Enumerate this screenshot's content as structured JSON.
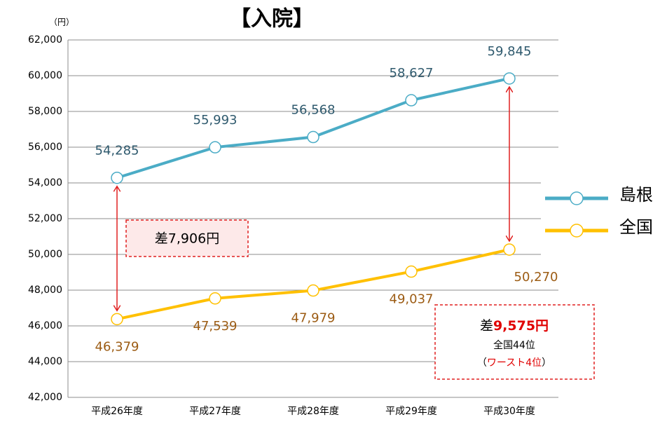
{
  "chart_data": {
    "type": "line",
    "title": "【入院】",
    "y_unit": "（円）",
    "categories": [
      "平成26年度",
      "平成27年度",
      "平成28年度",
      "平成29年度",
      "平成30年度"
    ],
    "series": [
      {
        "name": "島根",
        "color": "#4bacc6",
        "label_color": "#2f5a6e",
        "values": [
          54285,
          55993,
          56568,
          58627,
          59845
        ],
        "value_labels": [
          "54,285",
          "55,993",
          "56,568",
          "58,627",
          "59,845"
        ]
      },
      {
        "name": "全国",
        "color": "#ffc000",
        "label_color": "#9c5c14",
        "values": [
          46379,
          47539,
          47979,
          49037,
          50270
        ],
        "value_labels": [
          "46,379",
          "47,539",
          "47,979",
          "49,037",
          "50,270"
        ]
      }
    ],
    "ylim": [
      42000,
      62000
    ],
    "yticks": [
      {
        "value": 42000,
        "label": "42,000"
      },
      {
        "value": 44000,
        "label": "44,000"
      },
      {
        "value": 46000,
        "label": "46,000"
      },
      {
        "value": 48000,
        "label": "48,000"
      },
      {
        "value": 50000,
        "label": "50,000"
      },
      {
        "value": 52000,
        "label": "52,000"
      },
      {
        "value": 54000,
        "label": "54,000"
      },
      {
        "value": 56000,
        "label": "56,000"
      },
      {
        "value": 58000,
        "label": "58,000"
      },
      {
        "value": 60000,
        "label": "60,000"
      },
      {
        "value": 62000,
        "label": "62,000"
      }
    ],
    "grid": true,
    "legend": "right",
    "annotations": [
      {
        "text": "差7,906円"
      },
      {
        "prefix": "差",
        "amount": "9,575円",
        "rank": "全国44位",
        "open": "（",
        "worst": "ワースト4位",
        "close": "）"
      }
    ]
  }
}
